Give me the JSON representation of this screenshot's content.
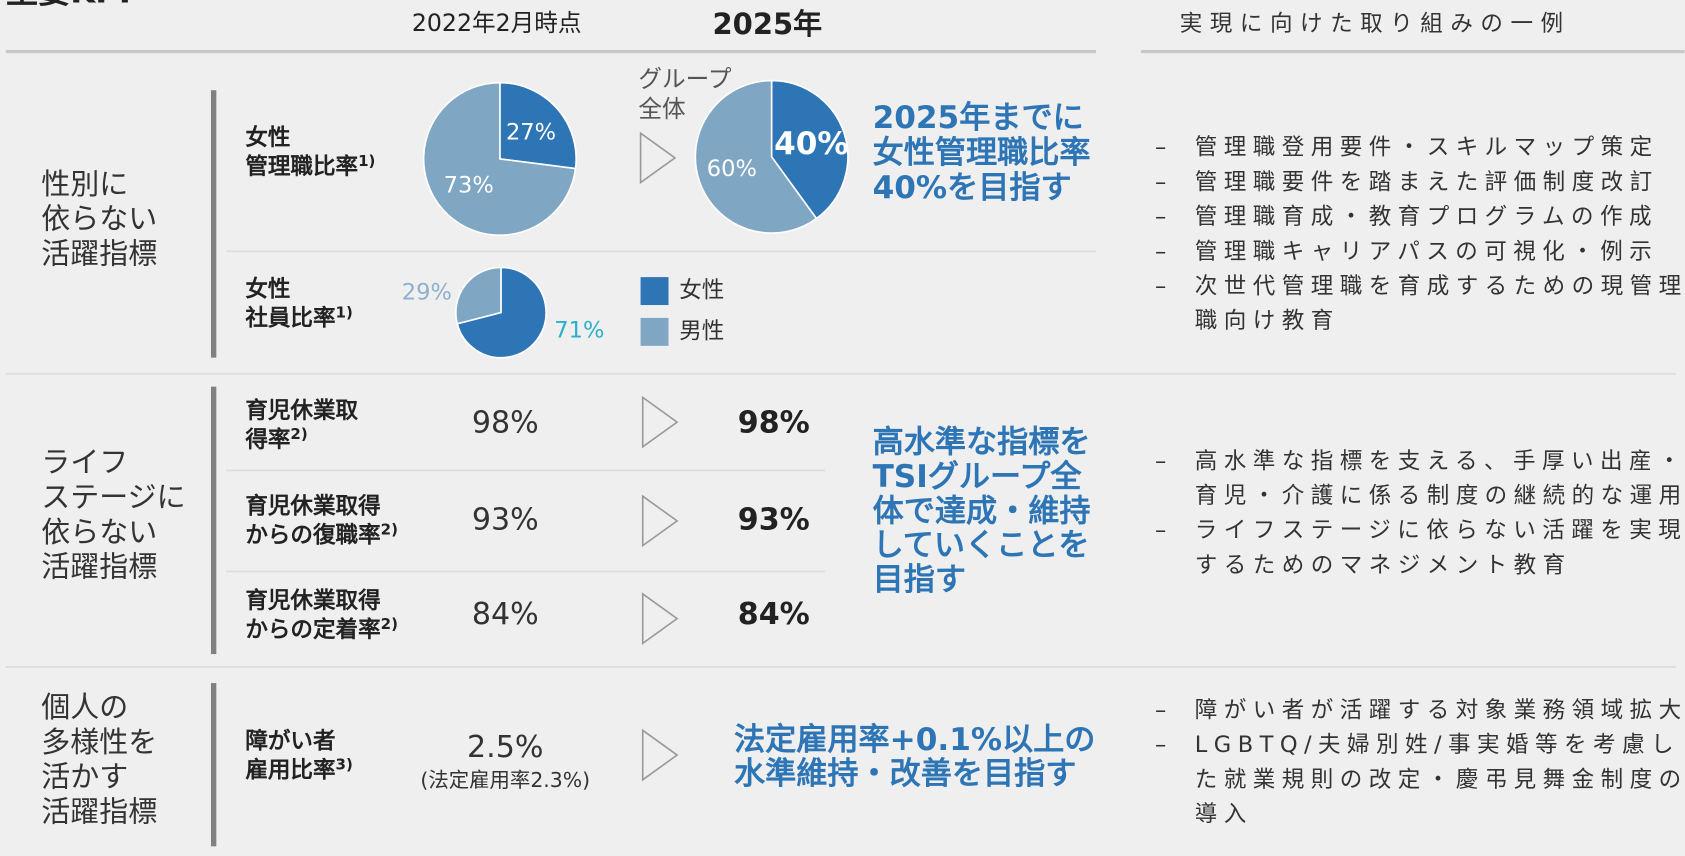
{
  "header": {
    "title": "主要KPI",
    "columns": {
      "current": "2022年2月時点",
      "target": "2025年",
      "actions": "実現に向けた取り組みの一例"
    }
  },
  "legend": {
    "items": [
      {
        "name": "女性",
        "color": "#2e75b6"
      },
      {
        "name": "男性",
        "color": "#7fa7c4"
      }
    ]
  },
  "sections": [
    {
      "label": [
        "性別に",
        "依らない",
        "活躍指標"
      ],
      "rows": [
        {
          "label": [
            "女性",
            "管理職比率"
          ],
          "note": "1)",
          "current": {
            "values": [
              27,
              73
            ],
            "value_labels": [
              "27%",
              "73%"
            ]
          },
          "target": {
            "values": [
              40,
              60
            ],
            "value_labels": [
              "40%",
              "60%"
            ]
          },
          "scope": [
            "グループ",
            "全体"
          ]
        },
        {
          "label": [
            "女性",
            "社員比率"
          ],
          "note": "1)",
          "current": {
            "values": [
              71,
              29
            ],
            "value_labels": [
              "71%",
              "29%"
            ]
          }
        }
      ],
      "goal": [
        "2025年までに",
        "女性管理職比率",
        "40%を目指す"
      ],
      "actions": [
        [
          "管理職登用要件・スキルマップ策定"
        ],
        [
          "管理職要件を踏まえた評価制度改訂"
        ],
        [
          "管理職育成・教育プログラムの作成"
        ],
        [
          "管理職キャリアパスの可視化・例示"
        ],
        [
          "次世代管理職を育成するための現管理",
          "職向け教育"
        ]
      ]
    },
    {
      "label": [
        "ライフ",
        "ステージに",
        "依らない",
        "活躍指標"
      ],
      "rows": [
        {
          "label": [
            "育児休業取",
            "得率"
          ],
          "note": "2)",
          "current": "98%",
          "target": "98%"
        },
        {
          "label": [
            "育児休業取得",
            "からの復職率"
          ],
          "note": "2)",
          "current": "93%",
          "target": "93%"
        },
        {
          "label": [
            "育児休業取得",
            "からの定着率"
          ],
          "note": "2)",
          "current": "84%",
          "target": "84%"
        }
      ],
      "goal": [
        "高水準な指標を",
        "TSIグループ全",
        "体で達成・維持",
        "していくことを",
        "目指す"
      ],
      "actions": [
        [
          "高水準な指標を支える、手厚い出産・",
          "育児・介護に係る制度の継続的な運用"
        ],
        [
          "ライフステージに依らない活躍を実現",
          "するためのマネジメント教育"
        ]
      ]
    },
    {
      "label": [
        "個人の",
        "多様性を",
        "活かす",
        "活躍指標"
      ],
      "rows": [
        {
          "label": [
            "障がい者",
            "雇用比率"
          ],
          "note": "3)",
          "current": "2.5%",
          "current_note": "(法定雇用率2.3%)"
        }
      ],
      "goal": [
        "法定雇用率+0.1%以上の",
        "水準維持・改善を目指す"
      ],
      "actions": [
        [
          "障がい者が活躍する対象業務領域拡大"
        ],
        [
          "LGBTQ/夫婦別姓/事実婚等を考慮し",
          "た就業規則の改定・慶弔見舞金制度の",
          "導入"
        ]
      ]
    }
  ]
}
